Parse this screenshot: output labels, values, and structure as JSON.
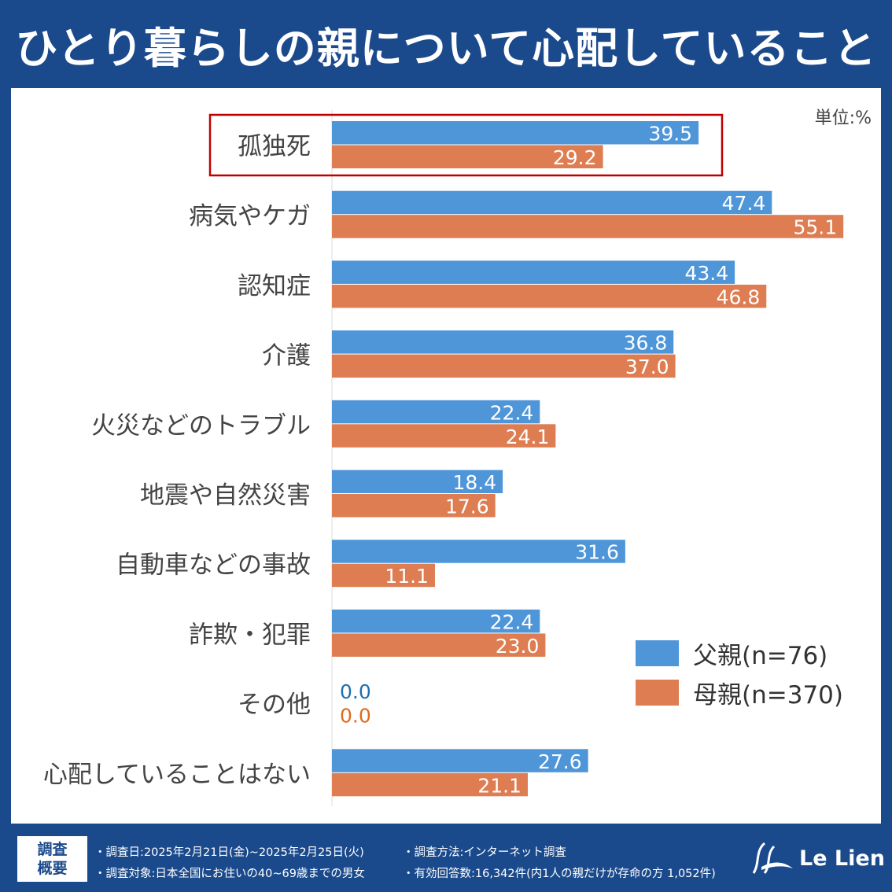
{
  "title": "ひとり暮らしの親について心配していること",
  "unit": "単位:%",
  "chart_data": {
    "type": "bar",
    "orientation": "horizontal",
    "title": "ひとり暮らしの親について心配していること",
    "categories": [
      "孤独死",
      "病気やケガ",
      "認知症",
      "介護",
      "火災などのトラブル",
      "地震や自然災害",
      "自動車などの事故",
      "詐欺・犯罪",
      "その他",
      "心配していることはない"
    ],
    "series": [
      {
        "name": "父親(n=76)",
        "color": "#4f96d9",
        "values": [
          39.5,
          47.4,
          43.4,
          36.8,
          22.4,
          18.4,
          31.6,
          22.4,
          0.0,
          27.6
        ]
      },
      {
        "name": "母親(n=370)",
        "color": "#de7d52",
        "values": [
          29.2,
          55.1,
          46.8,
          37.0,
          24.1,
          17.6,
          11.1,
          23.0,
          0.0,
          21.1
        ]
      }
    ],
    "highlighted_category": "孤独死",
    "highlight_color": "#c00000",
    "xlim": [
      0,
      60
    ],
    "legend_position": "right",
    "grid": false
  },
  "footer": {
    "box_label_1": "調査",
    "box_label_2": "概要",
    "date": "・調査日:2025年2月21日(金)~2025年2月25日(火)",
    "method": "・調査方法:インターネット調査",
    "target": "・調査対象:日本全国にお住いの40~69歳までの男女",
    "responses": "・有効回答数:16,342件(内1人の親だけが存命の方 1,052件)",
    "logo": "Le Lien"
  }
}
